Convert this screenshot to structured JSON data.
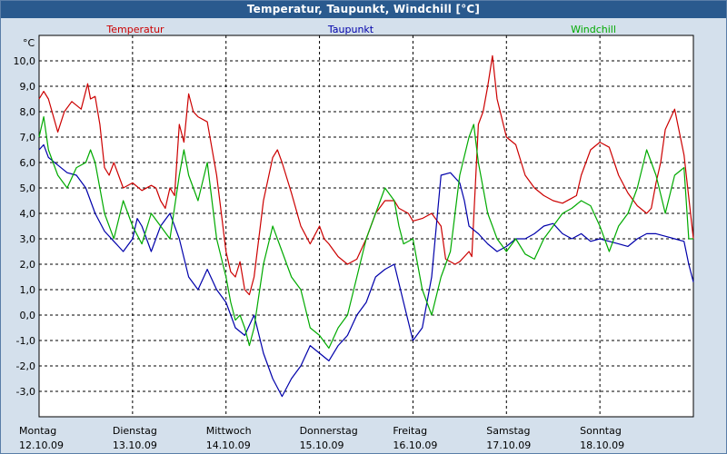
{
  "window": {
    "title": "Temperatur, Taupunkt, Windchill [°C]"
  },
  "chart_data": {
    "type": "line",
    "title": "Temperatur, Taupunkt, Windchill [°C]",
    "ylabel": "°C",
    "ylim": [
      -4,
      11
    ],
    "xlim": [
      0,
      7
    ],
    "y_ticks": [
      10,
      9,
      8,
      7,
      6,
      5,
      4,
      3,
      2,
      1,
      0,
      -1,
      -2,
      -3
    ],
    "y_tick_labels": [
      "10,0",
      "9,0",
      "8,0",
      "7,0",
      "6,0",
      "5,0",
      "4,0",
      "3,0",
      "2,0",
      "1,0",
      "0,0",
      "-1,0",
      "-2,0",
      "-3,0"
    ],
    "x_ticks": [
      {
        "day": "Montag",
        "date": "12.10.09"
      },
      {
        "day": "Dienstag",
        "date": "13.10.09"
      },
      {
        "day": "Mittwoch",
        "date": "14.10.09"
      },
      {
        "day": "Donnerstag",
        "date": "15.10.09"
      },
      {
        "day": "Freitag",
        "date": "16.10.09"
      },
      {
        "day": "Samstag",
        "date": "17.10.09"
      },
      {
        "day": "Sonntag",
        "date": "18.10.09"
      }
    ],
    "grid": true,
    "series": [
      {
        "name": "Temperatur",
        "color": "#cc0000",
        "x": [
          0,
          0.05,
          0.1,
          0.2,
          0.27,
          0.35,
          0.45,
          0.52,
          0.55,
          0.6,
          0.65,
          0.7,
          0.75,
          0.8,
          0.9,
          1.0,
          1.1,
          1.2,
          1.25,
          1.3,
          1.35,
          1.4,
          1.45,
          1.5,
          1.55,
          1.6,
          1.65,
          1.7,
          1.8,
          1.9,
          2.0,
          2.05,
          2.1,
          2.15,
          2.2,
          2.25,
          2.3,
          2.4,
          2.5,
          2.55,
          2.6,
          2.7,
          2.8,
          2.9,
          3.0,
          3.05,
          3.1,
          3.2,
          3.3,
          3.4,
          3.5,
          3.6,
          3.7,
          3.8,
          3.85,
          3.95,
          4.0,
          4.1,
          4.2,
          4.3,
          4.35,
          4.45,
          4.5,
          4.55,
          4.6,
          4.63,
          4.7,
          4.75,
          4.8,
          4.85,
          4.9,
          5.0,
          5.1,
          5.2,
          5.3,
          5.4,
          5.5,
          5.6,
          5.7,
          5.75,
          5.8,
          5.9,
          6.0,
          6.1,
          6.2,
          6.3,
          6.4,
          6.5,
          6.55,
          6.6,
          6.65,
          6.7,
          6.8,
          6.9,
          7.0
        ],
        "values": [
          8.5,
          8.8,
          8.5,
          7.2,
          8.0,
          8.4,
          8.1,
          9.1,
          8.5,
          8.6,
          7.5,
          5.8,
          5.5,
          6.0,
          5.0,
          5.2,
          4.9,
          5.1,
          5.0,
          4.5,
          4.2,
          5.0,
          4.7,
          7.5,
          6.8,
          8.7,
          8.0,
          7.8,
          7.6,
          5.5,
          2.5,
          1.7,
          1.5,
          2.1,
          1.0,
          0.8,
          1.5,
          4.5,
          6.2,
          6.5,
          6.0,
          4.8,
          3.5,
          2.8,
          3.5,
          3.0,
          2.8,
          2.3,
          2.0,
          2.2,
          3.0,
          4.0,
          4.5,
          4.5,
          4.2,
          4.0,
          3.7,
          3.8,
          4.0,
          3.5,
          2.2,
          2.0,
          2.1,
          2.3,
          2.5,
          2.3,
          7.5,
          8.0,
          9.0,
          10.2,
          8.5,
          7.0,
          6.7,
          5.5,
          5.0,
          4.7,
          4.5,
          4.4,
          4.6,
          4.7,
          5.5,
          6.5,
          6.8,
          6.6,
          5.5,
          4.8,
          4.3,
          4.0,
          4.2,
          5.2,
          6.0,
          7.3,
          8.1,
          6.3,
          3.0
        ]
      },
      {
        "name": "Taupunkt",
        "color": "#0000aa",
        "x": [
          0,
          0.05,
          0.1,
          0.2,
          0.3,
          0.4,
          0.5,
          0.6,
          0.7,
          0.8,
          0.9,
          1.0,
          1.05,
          1.1,
          1.15,
          1.2,
          1.3,
          1.4,
          1.5,
          1.6,
          1.7,
          1.8,
          1.9,
          2.0,
          2.05,
          2.1,
          2.2,
          2.3,
          2.4,
          2.5,
          2.6,
          2.7,
          2.8,
          2.9,
          3.0,
          3.1,
          3.2,
          3.3,
          3.4,
          3.5,
          3.6,
          3.7,
          3.8,
          3.9,
          4.0,
          4.1,
          4.2,
          4.3,
          4.4,
          4.5,
          4.55,
          4.6,
          4.7,
          4.8,
          4.9,
          5.0,
          5.1,
          5.2,
          5.3,
          5.4,
          5.5,
          5.6,
          5.7,
          5.8,
          5.9,
          6.0,
          6.1,
          6.2,
          6.3,
          6.4,
          6.5,
          6.6,
          6.7,
          6.8,
          6.9,
          6.95,
          7.0
        ],
        "values": [
          6.5,
          6.7,
          6.2,
          5.9,
          5.6,
          5.5,
          5.0,
          4.0,
          3.3,
          2.9,
          2.5,
          3.0,
          3.8,
          3.5,
          3.0,
          2.5,
          3.5,
          4.0,
          3.0,
          1.5,
          1.0,
          1.8,
          1.0,
          0.5,
          0.0,
          -0.5,
          -0.8,
          0.0,
          -1.5,
          -2.5,
          -3.2,
          -2.5,
          -2.0,
          -1.2,
          -1.5,
          -1.8,
          -1.2,
          -0.8,
          0.0,
          0.5,
          1.5,
          1.8,
          2.0,
          0.5,
          -1.0,
          -0.5,
          1.5,
          5.5,
          5.6,
          5.2,
          4.5,
          3.5,
          3.2,
          2.8,
          2.5,
          2.7,
          3.0,
          3.0,
          3.2,
          3.5,
          3.6,
          3.2,
          3.0,
          3.2,
          2.9,
          3.0,
          2.9,
          2.8,
          2.7,
          3.0,
          3.2,
          3.2,
          3.1,
          3.0,
          2.9,
          2.0,
          1.3
        ]
      },
      {
        "name": "Windchill",
        "color": "#00aa00",
        "x": [
          0,
          0.05,
          0.1,
          0.2,
          0.3,
          0.4,
          0.5,
          0.55,
          0.6,
          0.7,
          0.8,
          0.9,
          1.0,
          1.1,
          1.2,
          1.3,
          1.4,
          1.5,
          1.55,
          1.6,
          1.7,
          1.8,
          1.9,
          2.0,
          2.05,
          2.1,
          2.15,
          2.2,
          2.25,
          2.3,
          2.4,
          2.5,
          2.6,
          2.7,
          2.8,
          2.9,
          3.0,
          3.1,
          3.2,
          3.3,
          3.4,
          3.5,
          3.6,
          3.7,
          3.8,
          3.85,
          3.9,
          4.0,
          4.1,
          4.2,
          4.3,
          4.4,
          4.5,
          4.6,
          4.65,
          4.7,
          4.75,
          4.8,
          4.85,
          4.9,
          5.0,
          5.1,
          5.2,
          5.3,
          5.4,
          5.5,
          5.6,
          5.7,
          5.8,
          5.9,
          6.0,
          6.1,
          6.2,
          6.3,
          6.4,
          6.5,
          6.6,
          6.7,
          6.8,
          6.9,
          6.95,
          7.0
        ],
        "values": [
          7.0,
          7.8,
          6.5,
          5.5,
          5.0,
          5.8,
          6.0,
          6.5,
          6.0,
          4.0,
          3.0,
          4.5,
          3.5,
          2.8,
          4.0,
          3.5,
          3.0,
          5.5,
          6.5,
          5.5,
          4.5,
          6.0,
          3.0,
          1.5,
          0.5,
          -0.2,
          0.0,
          -0.5,
          -1.2,
          -0.5,
          2.0,
          3.5,
          2.5,
          1.5,
          1.0,
          -0.5,
          -0.8,
          -1.3,
          -0.5,
          0.0,
          1.5,
          3.0,
          4.0,
          5.0,
          4.5,
          3.5,
          2.8,
          3.0,
          1.0,
          0.0,
          1.5,
          2.5,
          5.5,
          7.0,
          7.5,
          6.0,
          5.0,
          4.0,
          3.5,
          3.0,
          2.5,
          3.0,
          2.4,
          2.2,
          3.0,
          3.5,
          4.0,
          4.2,
          4.5,
          4.3,
          3.5,
          2.5,
          3.5,
          4.0,
          5.0,
          6.5,
          5.5,
          4.0,
          5.5,
          5.8,
          3.0,
          3.0
        ]
      }
    ]
  }
}
